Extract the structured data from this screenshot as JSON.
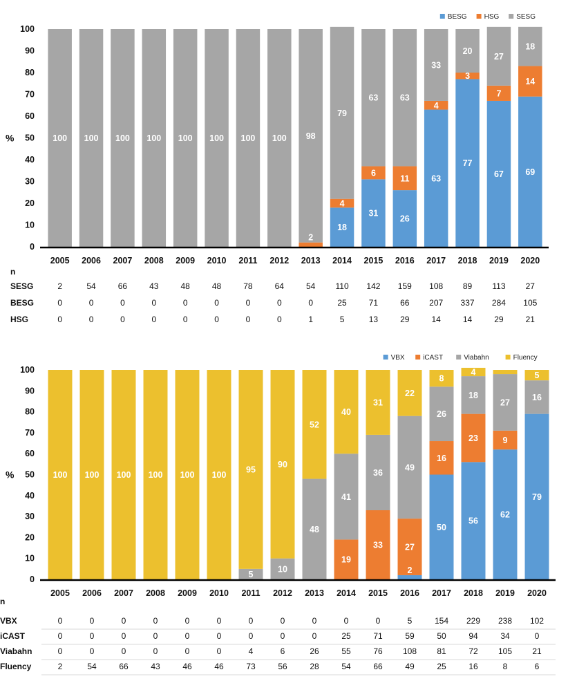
{
  "colors": {
    "BESG": "#5b9bd5",
    "HSG": "#ed7d31",
    "SESG": "#a6a6a6",
    "VBX": "#5b9bd5",
    "iCAST": "#ed7d31",
    "Viabahn": "#a6a6a6",
    "Fluency": "#ecc02e"
  },
  "chart_data": [
    {
      "type": "bar",
      "stacked": true,
      "ylabel": "%",
      "ylim": [
        0,
        100
      ],
      "yticks": [
        0,
        10,
        20,
        30,
        40,
        50,
        60,
        70,
        80,
        90,
        100
      ],
      "legend_position": "top-right",
      "grid": false,
      "categories": [
        "2005",
        "2006",
        "2007",
        "2008",
        "2009",
        "2010",
        "2011",
        "2012",
        "2013",
        "2014",
        "2015",
        "2016",
        "2017",
        "2018",
        "2019",
        "2020"
      ],
      "stack_order": [
        "BESG",
        "HSG",
        "SESG"
      ],
      "legend_order": [
        "BESG",
        "HSG",
        "SESG"
      ],
      "series": [
        {
          "name": "BESG",
          "values": [
            0,
            0,
            0,
            0,
            0,
            0,
            0,
            0,
            0,
            18,
            31,
            26,
            63,
            77,
            67,
            69
          ]
        },
        {
          "name": "HSG",
          "values": [
            0,
            0,
            0,
            0,
            0,
            0,
            0,
            0,
            2,
            4,
            6,
            11,
            4,
            3,
            7,
            14
          ]
        },
        {
          "name": "SESG",
          "values": [
            100,
            100,
            100,
            100,
            100,
            100,
            100,
            100,
            98,
            79,
            63,
            63,
            33,
            20,
            27,
            18
          ]
        }
      ],
      "table": {
        "header": "n",
        "rows": [
          {
            "label": "SESG",
            "values": [
              "2",
              "54",
              "66",
              "43",
              "48",
              "48",
              "78",
              "64",
              "54",
              "110",
              "142",
              "159",
              "108",
              "89",
              "113",
              "27"
            ]
          },
          {
            "label": "BESG",
            "values": [
              "0",
              "0",
              "0",
              "0",
              "0",
              "0",
              "0",
              "0",
              "0",
              "25",
              "71",
              "66",
              "207",
              "337",
              "284",
              "105"
            ]
          },
          {
            "label": "HSG",
            "values": [
              "0",
              "0",
              "0",
              "0",
              "0",
              "0",
              "0",
              "0",
              "1",
              "5",
              "13",
              "29",
              "14",
              "14",
              "29",
              "21"
            ]
          }
        ]
      }
    },
    {
      "type": "bar",
      "stacked": true,
      "ylabel": "%",
      "ylim": [
        0,
        100
      ],
      "yticks": [
        0,
        10,
        20,
        30,
        40,
        50,
        60,
        70,
        80,
        90,
        100
      ],
      "legend_position": "top-right",
      "grid": false,
      "categories": [
        "2005",
        "2006",
        "2007",
        "2008",
        "2009",
        "2010",
        "2011",
        "2012",
        "2013",
        "2014",
        "2015",
        "2016",
        "2017",
        "2018",
        "2019",
        "2020"
      ],
      "stack_order": [
        "VBX",
        "iCAST",
        "Viabahn",
        "Fluency"
      ],
      "legend_order": [
        "VBX",
        "iCAST",
        "Viabahn",
        "Fluency"
      ],
      "series": [
        {
          "name": "VBX",
          "values": [
            0,
            0,
            0,
            0,
            0,
            0,
            0,
            0,
            0,
            0,
            0,
            2,
            50,
            56,
            62,
            79
          ]
        },
        {
          "name": "iCAST",
          "values": [
            0,
            0,
            0,
            0,
            0,
            0,
            0,
            0,
            0,
            19,
            33,
            27,
            16,
            23,
            9,
            0
          ]
        },
        {
          "name": "Viabahn",
          "values": [
            0,
            0,
            0,
            0,
            0,
            0,
            5,
            10,
            48,
            41,
            36,
            49,
            26,
            18,
            27,
            16
          ]
        },
        {
          "name": "Fluency",
          "values": [
            100,
            100,
            100,
            100,
            100,
            100,
            95,
            90,
            52,
            40,
            31,
            22,
            8,
            4,
            2,
            5
          ]
        }
      ],
      "table": {
        "header": "n",
        "rows": [
          {
            "label": "VBX",
            "values": [
              "0",
              "0",
              "0",
              "0",
              "0",
              "0",
              "0",
              "0",
              "0",
              "0",
              "0",
              "5",
              "154",
              "229",
              "238",
              "102"
            ]
          },
          {
            "label": "iCAST",
            "values": [
              "0",
              "0",
              "0",
              "0",
              "0",
              "0",
              "0",
              "0",
              "0",
              "25",
              "71",
              "59",
              "50",
              "94",
              "34",
              "0"
            ]
          },
          {
            "label": "Viabahn",
            "values": [
              "0",
              "0",
              "0",
              "0",
              "0",
              "0",
              "4",
              "6",
              "26",
              "55",
              "76",
              "108",
              "81",
              "72",
              "105",
              "21"
            ]
          },
          {
            "label": "Fluency",
            "values": [
              "2",
              "54",
              "66",
              "43",
              "46",
              "46",
              "73",
              "56",
              "28",
              "54",
              "66",
              "49",
              "25",
              "16",
              "8",
              "6"
            ]
          }
        ]
      }
    }
  ]
}
